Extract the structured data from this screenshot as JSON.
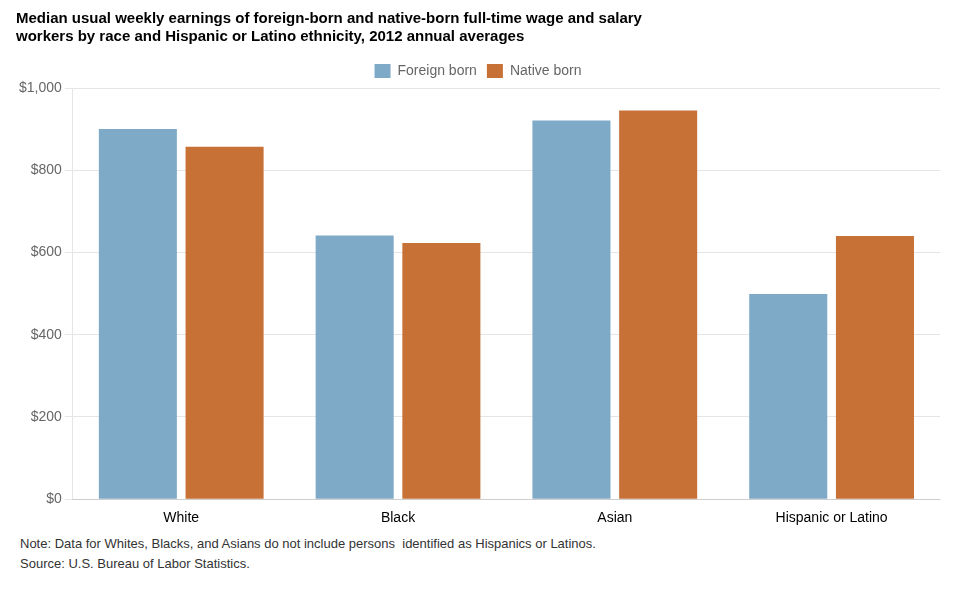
{
  "chart_data": {
    "type": "bar",
    "title": [
      "Median usual weekly earnings of foreign-born and native-born full-time wage and salary",
      "workers by race and Hispanic or Latino ethnicity, 2012 annual averages"
    ],
    "categories": [
      "White",
      "Black",
      "Asian",
      "Hispanic or Latino"
    ],
    "series": [
      {
        "name": "Foreign born",
        "color": "#7eaac8",
        "values": [
          900,
          641,
          921,
          499
        ]
      },
      {
        "name": "Native born",
        "color": "#c87137",
        "values": [
          857,
          623,
          945,
          640
        ]
      }
    ],
    "ylim": [
      0,
      1000
    ],
    "yticks": [
      {
        "value": 0,
        "label": "$0"
      },
      {
        "value": 200,
        "label": "$200"
      },
      {
        "value": 400,
        "label": "$400"
      },
      {
        "value": 600,
        "label": "$600"
      },
      {
        "value": 800,
        "label": "$800"
      },
      {
        "value": 1000,
        "label": "$1,000"
      }
    ],
    "grid": true,
    "legend": "top",
    "annotations": [
      "Note: Data for Whites, Blacks, and Asians do not include persons  identified as Hispanics or Latinos.",
      "Source: U.S. Bureau of Labor Statistics."
    ]
  }
}
